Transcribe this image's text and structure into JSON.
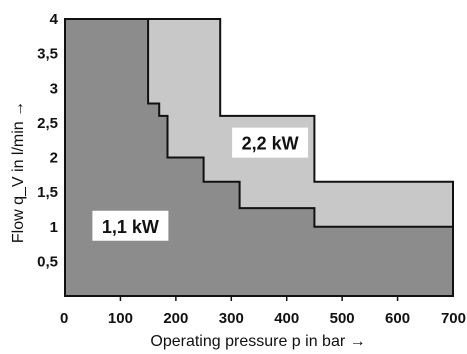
{
  "chart_data": {
    "type": "area",
    "title": "",
    "xlabel": "Operating pressure p in bar →",
    "ylabel": "Flow q_V in l/min →",
    "xlim": [
      0,
      700
    ],
    "ylim": [
      0,
      4
    ],
    "x_ticks": [
      "0",
      "100",
      "200",
      "300",
      "400",
      "500",
      "600",
      "700"
    ],
    "y_ticks": [
      "0,5",
      "1",
      "1,5",
      "2",
      "2,5",
      "3",
      "3,5",
      "4"
    ],
    "grid": false,
    "series": [
      {
        "name": "2,2 kW",
        "color": "#c8c8c8",
        "points": [
          [
            0,
            4
          ],
          [
            280,
            4
          ],
          [
            280,
            2.6
          ],
          [
            450,
            2.6
          ],
          [
            450,
            1.65
          ],
          [
            700,
            1.65
          ],
          [
            700,
            0
          ],
          [
            0,
            0
          ]
        ]
      },
      {
        "name": "1,1 kW",
        "color": "#8c8c8c",
        "points": [
          [
            0,
            4
          ],
          [
            150,
            4
          ],
          [
            150,
            2.78
          ],
          [
            170,
            2.78
          ],
          [
            170,
            2.6
          ],
          [
            185,
            2.6
          ],
          [
            185,
            2
          ],
          [
            250,
            2
          ],
          [
            250,
            1.65
          ],
          [
            315,
            1.65
          ],
          [
            315,
            1.27
          ],
          [
            450,
            1.27
          ],
          [
            450,
            1
          ],
          [
            700,
            1
          ],
          [
            700,
            0
          ],
          [
            0,
            0
          ]
        ]
      }
    ]
  }
}
